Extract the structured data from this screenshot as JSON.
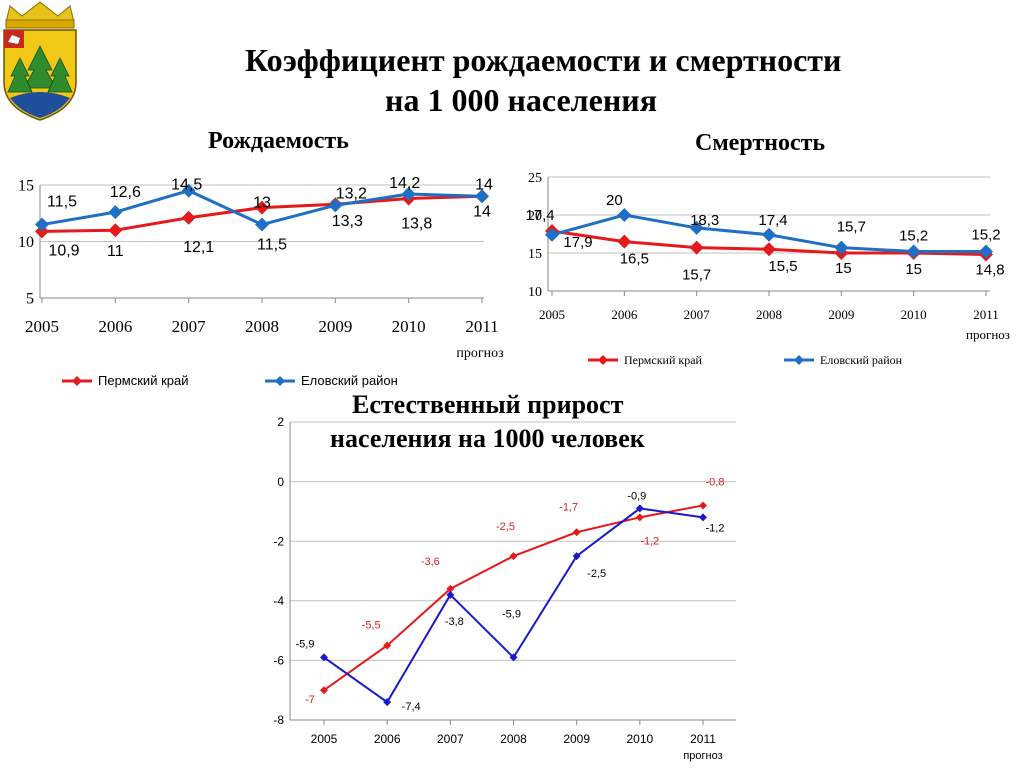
{
  "title_line1": "Коэффициент рождаемости и смертности",
  "title_line2": "на 1 000 населения",
  "colors": {
    "perm": "#e41a1c",
    "elovo": "#1f6fc5",
    "elovo_dark": "#1a1acc"
  },
  "legend": {
    "perm": "Пермский  край",
    "elovo": "Еловский район"
  },
  "chart_data": [
    {
      "type": "line",
      "title": "Рождаемость",
      "categories": [
        "2005",
        "2006",
        "2007",
        "2008",
        "2009",
        "2010",
        "2011"
      ],
      "category_sublabel": {
        "2011": "прогноз"
      },
      "ylim": [
        5,
        15
      ],
      "yticks": [
        5,
        10,
        15
      ],
      "grid": true,
      "legend_position": "bottom",
      "series": [
        {
          "name": "Пермский  край",
          "values": [
            10.9,
            11,
            12.1,
            13,
            13.3,
            13.8,
            14
          ],
          "labels": [
            "10,9",
            "11",
            "12,1",
            "13",
            "13,3",
            "13,8",
            "14"
          ]
        },
        {
          "name": "Еловский район",
          "values": [
            11.5,
            12.6,
            14.5,
            11.5,
            13.2,
            14.2,
            14
          ],
          "labels": [
            "11,5",
            "12,6",
            "14,5",
            "11,5",
            "13,2",
            "14,2",
            "14"
          ]
        }
      ]
    },
    {
      "type": "line",
      "title": "Смертность",
      "categories": [
        "2005",
        "2006",
        "2007",
        "2008",
        "2009",
        "2010",
        "2011"
      ],
      "category_sublabel": {
        "2011": "прогноз"
      },
      "ylim": [
        10,
        25
      ],
      "yticks": [
        10,
        15,
        20,
        25
      ],
      "grid": true,
      "legend_position": "bottom",
      "series": [
        {
          "name": "Пермский  край",
          "values": [
            17.9,
            16.5,
            15.7,
            15.5,
            15,
            15,
            14.8
          ],
          "labels": [
            "17,9",
            "16,5",
            "15,7",
            "15,5",
            "15",
            "15",
            "14,8"
          ]
        },
        {
          "name": "Еловский район",
          "values": [
            17.4,
            20,
            18.3,
            17.4,
            15.7,
            15.2,
            15.2
          ],
          "labels": [
            "17,4",
            "20",
            "18,3",
            "17,4",
            "15,7",
            "15,2",
            "15,2"
          ]
        }
      ]
    },
    {
      "type": "line",
      "title": "Естественный прирост населения на 1000 человек",
      "categories": [
        "2005",
        "2006",
        "2007",
        "2008",
        "2009",
        "2010",
        "2011"
      ],
      "category_sublabel": {
        "2011": "прогноз"
      },
      "ylim": [
        -8,
        2
      ],
      "yticks": [
        -8,
        -6,
        -4,
        -2,
        0,
        2
      ],
      "grid": true,
      "series": [
        {
          "name": "Пермский  край",
          "values": [
            -7,
            -5.5,
            -3.6,
            -2.5,
            -1.7,
            -1.2,
            -0.8
          ],
          "labels": [
            "-7",
            "-5,5",
            "-3,6",
            "-2,5",
            "-1,7",
            "-1,2",
            "-0,8"
          ]
        },
        {
          "name": "Еловский район",
          "values": [
            -5.9,
            -7.4,
            -3.8,
            -5.9,
            -2.5,
            -0.9,
            -1.2
          ],
          "labels": [
            "-5,9",
            "-7,4",
            "-3,8",
            "-5,9",
            "-2,5",
            "-0,9",
            "-1,2"
          ]
        }
      ]
    }
  ]
}
